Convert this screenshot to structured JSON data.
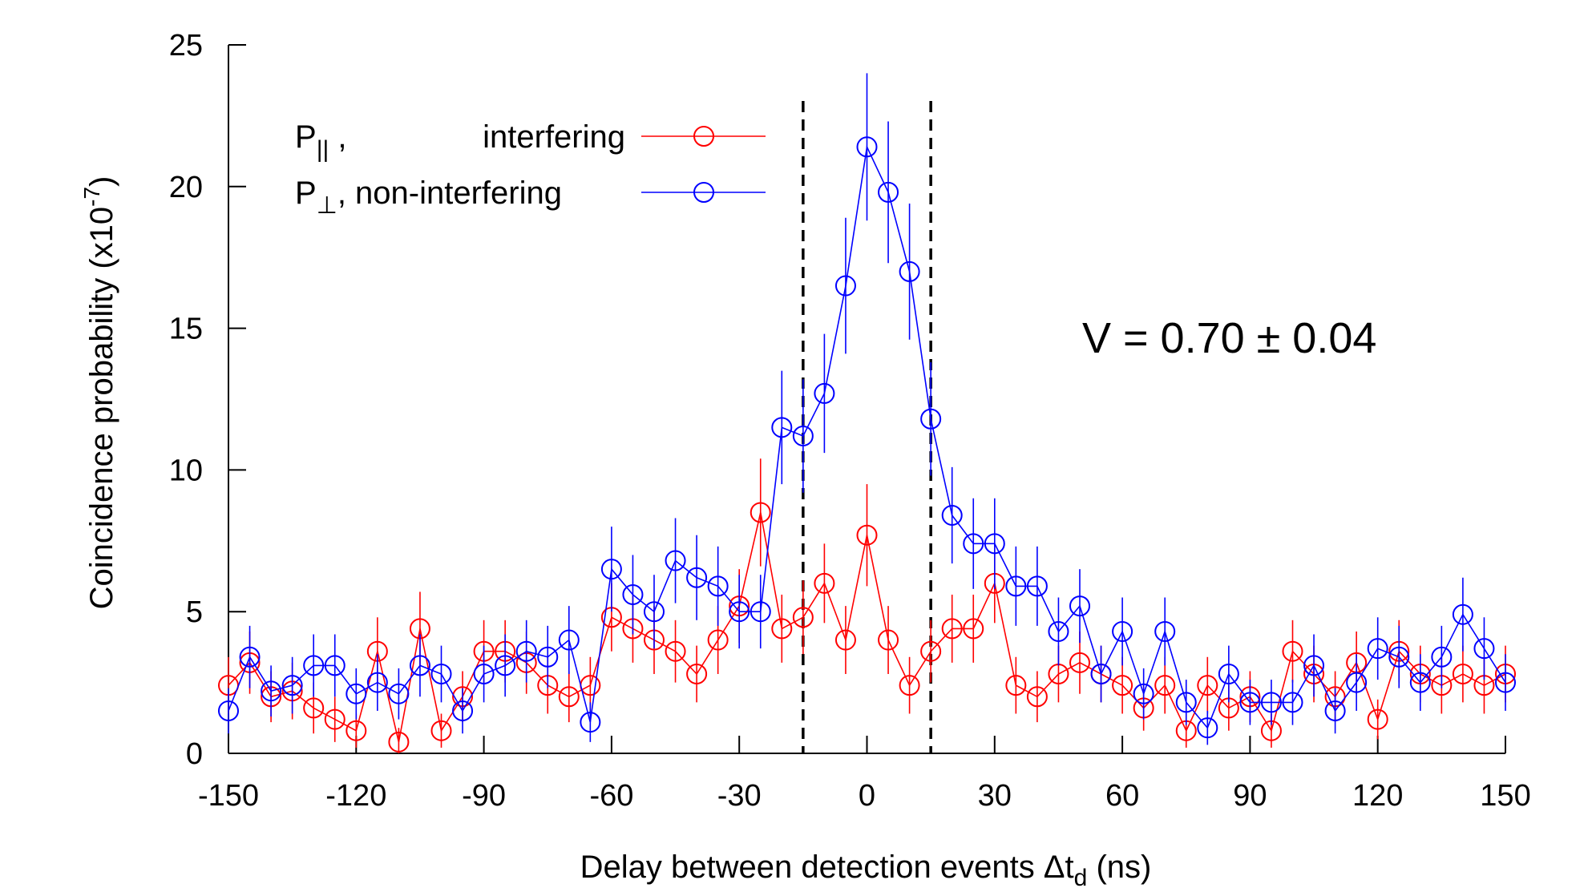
{
  "chart_data": {
    "type": "scatter",
    "title": "",
    "xlabel": "Delay between detection events Δt_d (ns)",
    "xlabel_parts": {
      "main": "Delay between detection events Δt",
      "sub": "d",
      "tail": " (ns)"
    },
    "ylabel": "Coincidence probability (x10^-7)",
    "ylabel_parts": {
      "main": "Coincidence probability (x10",
      "sup": "-7",
      "tail": ")"
    },
    "xlim": [
      -150,
      150
    ],
    "ylim": [
      0,
      25
    ],
    "xticks": [
      -150,
      -120,
      -90,
      -60,
      -30,
      0,
      30,
      60,
      90,
      120,
      150
    ],
    "yticks": [
      0,
      5,
      10,
      15,
      20,
      25
    ],
    "grid": false,
    "legend_position": "top-left",
    "annotation": "V = 0.70 ± 0.04",
    "vertical_dashed_lines_x": [
      -15,
      15
    ],
    "series": [
      {
        "name": "P∥ , interfering",
        "legend_symbol": "P",
        "legend_sub": "||",
        "legend_label": "interfering",
        "color": "#ff0000",
        "x": [
          -150,
          -145,
          -140,
          -135,
          -130,
          -125,
          -120,
          -115,
          -110,
          -105,
          -100,
          -95,
          -90,
          -85,
          -80,
          -75,
          -70,
          -65,
          -60,
          -55,
          -50,
          -45,
          -40,
          -35,
          -30,
          -25,
          -20,
          -15,
          -10,
          -5,
          0,
          5,
          10,
          15,
          20,
          25,
          30,
          35,
          40,
          45,
          50,
          55,
          60,
          65,
          70,
          75,
          80,
          85,
          90,
          95,
          100,
          105,
          110,
          115,
          120,
          125,
          130,
          135,
          140,
          145,
          150
        ],
        "y": [
          2.4,
          3.2,
          2.0,
          2.2,
          1.6,
          1.2,
          0.8,
          3.6,
          0.4,
          4.4,
          0.8,
          2.0,
          3.6,
          3.6,
          3.2,
          2.4,
          2.0,
          2.4,
          4.8,
          4.4,
          4.0,
          3.6,
          2.8,
          4.0,
          5.2,
          8.5,
          4.4,
          4.8,
          6.0,
          4.0,
          7.7,
          4.0,
          2.4,
          3.6,
          4.4,
          4.4,
          6.0,
          2.4,
          2.0,
          2.8,
          3.2,
          2.8,
          2.4,
          1.6,
          2.4,
          0.8,
          2.4,
          1.6,
          2.0,
          0.8,
          3.6,
          2.8,
          2.0,
          3.2,
          1.2,
          3.6,
          2.8,
          2.4,
          2.8,
          2.4,
          2.8
        ],
        "err": [
          1.0,
          1.1,
          0.9,
          1.0,
          0.9,
          0.8,
          0.6,
          1.2,
          0.5,
          1.3,
          0.6,
          0.9,
          1.1,
          1.1,
          1.1,
          1.0,
          0.9,
          1.0,
          1.2,
          1.2,
          1.2,
          1.1,
          1.0,
          1.2,
          1.3,
          1.9,
          1.2,
          1.3,
          1.4,
          1.2,
          1.8,
          1.2,
          1.0,
          1.1,
          1.2,
          1.2,
          1.4,
          1.0,
          0.9,
          1.0,
          1.1,
          1.0,
          1.0,
          0.8,
          1.0,
          0.6,
          1.0,
          0.8,
          0.9,
          0.6,
          1.1,
          1.0,
          0.9,
          1.1,
          0.7,
          1.1,
          1.0,
          1.0,
          1.0,
          1.0,
          1.0
        ]
      },
      {
        "name": "P⊥, non-interfering",
        "legend_symbol": "P",
        "legend_sub": "⊥",
        "legend_label": ", non-interfering",
        "color": "#0000ff",
        "x": [
          -150,
          -145,
          -140,
          -135,
          -130,
          -125,
          -120,
          -115,
          -110,
          -105,
          -100,
          -95,
          -90,
          -85,
          -80,
          -75,
          -70,
          -65,
          -60,
          -55,
          -50,
          -45,
          -40,
          -35,
          -30,
          -25,
          -20,
          -15,
          -10,
          -5,
          0,
          5,
          10,
          15,
          20,
          25,
          30,
          35,
          40,
          45,
          50,
          55,
          60,
          65,
          70,
          75,
          80,
          85,
          90,
          95,
          100,
          105,
          110,
          115,
          120,
          125,
          130,
          135,
          140,
          145,
          150
        ],
        "y": [
          1.5,
          3.4,
          2.2,
          2.4,
          3.1,
          3.1,
          2.1,
          2.5,
          2.1,
          3.1,
          2.8,
          1.5,
          2.8,
          3.1,
          3.6,
          3.4,
          4.0,
          1.1,
          6.5,
          5.6,
          5.0,
          6.8,
          6.2,
          5.9,
          5.0,
          5.0,
          11.5,
          11.2,
          12.7,
          16.5,
          21.4,
          19.8,
          17.0,
          11.8,
          8.4,
          7.4,
          7.4,
          5.9,
          5.9,
          4.3,
          5.2,
          2.8,
          4.3,
          2.1,
          4.3,
          1.8,
          0.9,
          2.8,
          1.8,
          1.8,
          1.8,
          3.1,
          1.5,
          2.5,
          3.7,
          3.4,
          2.5,
          3.4,
          4.9,
          3.7,
          2.5
        ],
        "err": [
          0.8,
          1.1,
          0.9,
          1.0,
          1.1,
          1.1,
          0.9,
          1.0,
          0.9,
          1.1,
          1.0,
          0.8,
          1.0,
          1.1,
          1.1,
          1.1,
          1.2,
          0.7,
          1.5,
          1.4,
          1.3,
          1.5,
          1.5,
          1.4,
          1.3,
          1.3,
          2.0,
          2.0,
          2.1,
          2.4,
          2.6,
          2.5,
          2.4,
          2.0,
          1.7,
          1.6,
          1.6,
          1.4,
          1.4,
          1.2,
          1.3,
          1.0,
          1.2,
          0.9,
          1.2,
          0.8,
          0.6,
          1.0,
          0.8,
          0.8,
          0.8,
          1.1,
          0.8,
          1.0,
          1.1,
          1.1,
          1.0,
          1.1,
          1.3,
          1.1,
          1.0
        ]
      }
    ]
  }
}
